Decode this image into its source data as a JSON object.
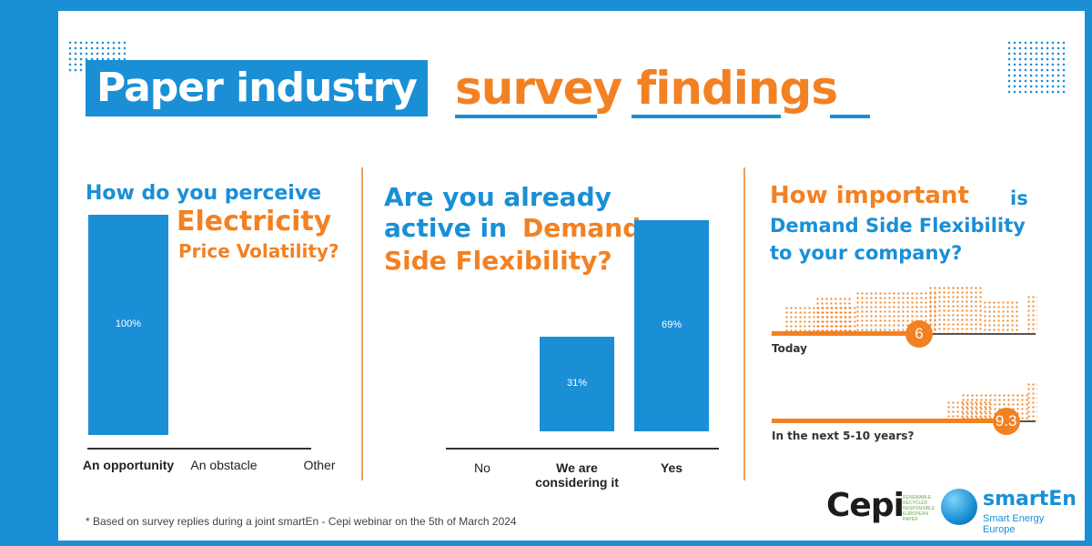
{
  "title": {
    "part1": "Paper industry",
    "part2": "survey findings"
  },
  "colors": {
    "accent_blue": "#1a8fd6",
    "accent_orange": "#f28123"
  },
  "panel1": {
    "question_line1": "How do you perceive",
    "question_highlight": "Electricity",
    "question_line3": "Price Volatility?"
  },
  "panel2": {
    "question_line1": "Are you already",
    "question_line2_a": "active in",
    "question_line2_b": "Demand",
    "question_line3": "Side Flexibility?"
  },
  "panel3": {
    "question_highlight": "How important",
    "question_line1_rest": "is",
    "question_line2": "Demand Side Flexibility",
    "question_line3": "to your company?",
    "rating_today_label": "Today",
    "rating_today_value": "6",
    "rating_future_label": "In the next 5-10 years?",
    "rating_future_value": "9.3"
  },
  "chart_data": [
    {
      "type": "bar",
      "categories": [
        "An opportunity",
        "An obstacle",
        "Other"
      ],
      "values": [
        100,
        0,
        0
      ],
      "data_labels": [
        "100%",
        "",
        ""
      ],
      "ylim": [
        0,
        100
      ]
    },
    {
      "type": "bar",
      "categories": [
        "No",
        "We are considering it",
        "Yes"
      ],
      "values": [
        0,
        31,
        69
      ],
      "data_labels": [
        "",
        "31%",
        "69%"
      ],
      "ylim": [
        0,
        100
      ]
    },
    {
      "type": "bar",
      "categories": [
        "Today",
        "In the next 5-10 years?"
      ],
      "values": [
        6,
        9.3
      ],
      "data_labels": [
        "6",
        "9.3"
      ],
      "ylim": [
        0,
        10
      ]
    }
  ],
  "footnote": "* Based on survey replies during a joint smartEn - Cepi webinar on the 5th of March 2024",
  "logos": {
    "cepi_word": "Cepi",
    "cepi_tagline": [
      "RENEWABLE",
      "RECYCLED",
      "RESPONSIBLE",
      "EUROPEAN PAPER"
    ],
    "smarten_name": "smartEn",
    "smarten_sub": "Smart Energy Europe"
  }
}
